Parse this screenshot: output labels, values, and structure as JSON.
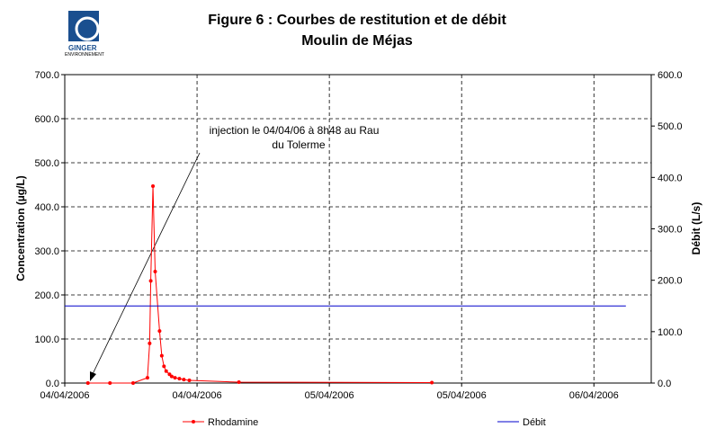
{
  "chart_data": {
    "type": "line",
    "title": "Figure 6 : Courbes de restitution et de débit",
    "subtitle": "Moulin de Méjas",
    "logo": {
      "name": "GINGER",
      "sub": "ENVIRONNEMENT"
    },
    "y_label": "Concentration (µg/L)",
    "y2_label": "Débit (L/s)",
    "annotation": [
      "injection le 04/04/06 à 8h48 au Rau",
      "du Tolerme"
    ],
    "xlim": [
      0,
      53.2
    ],
    "xticks": [
      {
        "value": 0,
        "label": "04/04/2006"
      },
      {
        "value": 12,
        "label": "04/04/2006"
      },
      {
        "value": 24,
        "label": "05/04/2006"
      },
      {
        "value": 36,
        "label": "05/04/2006"
      },
      {
        "value": 48,
        "label": "06/04/2006"
      }
    ],
    "ylim": [
      0,
      700
    ],
    "yticks": [
      {
        "value": 0,
        "label": "0.0"
      },
      {
        "value": 100,
        "label": "100.0"
      },
      {
        "value": 200,
        "label": "200.0"
      },
      {
        "value": 300,
        "label": "300.0"
      },
      {
        "value": 400,
        "label": "400.0"
      },
      {
        "value": 500,
        "label": "500.0"
      },
      {
        "value": 600,
        "label": "600.0"
      },
      {
        "value": 700,
        "label": "700.0"
      }
    ],
    "y2lim": [
      0,
      600
    ],
    "y2ticks": [
      {
        "value": 0,
        "label": "0.0"
      },
      {
        "value": 100,
        "label": "100.0"
      },
      {
        "value": 200,
        "label": "200.0"
      },
      {
        "value": 300,
        "label": "300.0"
      },
      {
        "value": 400,
        "label": "400.0"
      },
      {
        "value": 500,
        "label": "500.0"
      },
      {
        "value": 600,
        "label": "600.0"
      }
    ],
    "grid": true,
    "series": [
      {
        "name": "Rhodamine",
        "color": "#ff0000",
        "markers": true,
        "x": [
          2.1,
          4.1,
          6.2,
          7.5,
          7.7,
          7.8,
          8.0,
          8.2,
          8.6,
          8.8,
          9.0,
          9.2,
          9.5,
          9.7,
          10.0,
          10.4,
          10.8,
          11.3,
          15.8,
          33.3
        ],
        "values": [
          0,
          0,
          0,
          12,
          90,
          232,
          447,
          253,
          118,
          62,
          38,
          27,
          20,
          15,
          12,
          10,
          8,
          6,
          2,
          1
        ]
      },
      {
        "name": "Débit",
        "color": "#0000cc",
        "markers": false,
        "axis": "y2",
        "x": [
          0,
          50.9
        ],
        "values": [
          150,
          150
        ]
      }
    ]
  }
}
